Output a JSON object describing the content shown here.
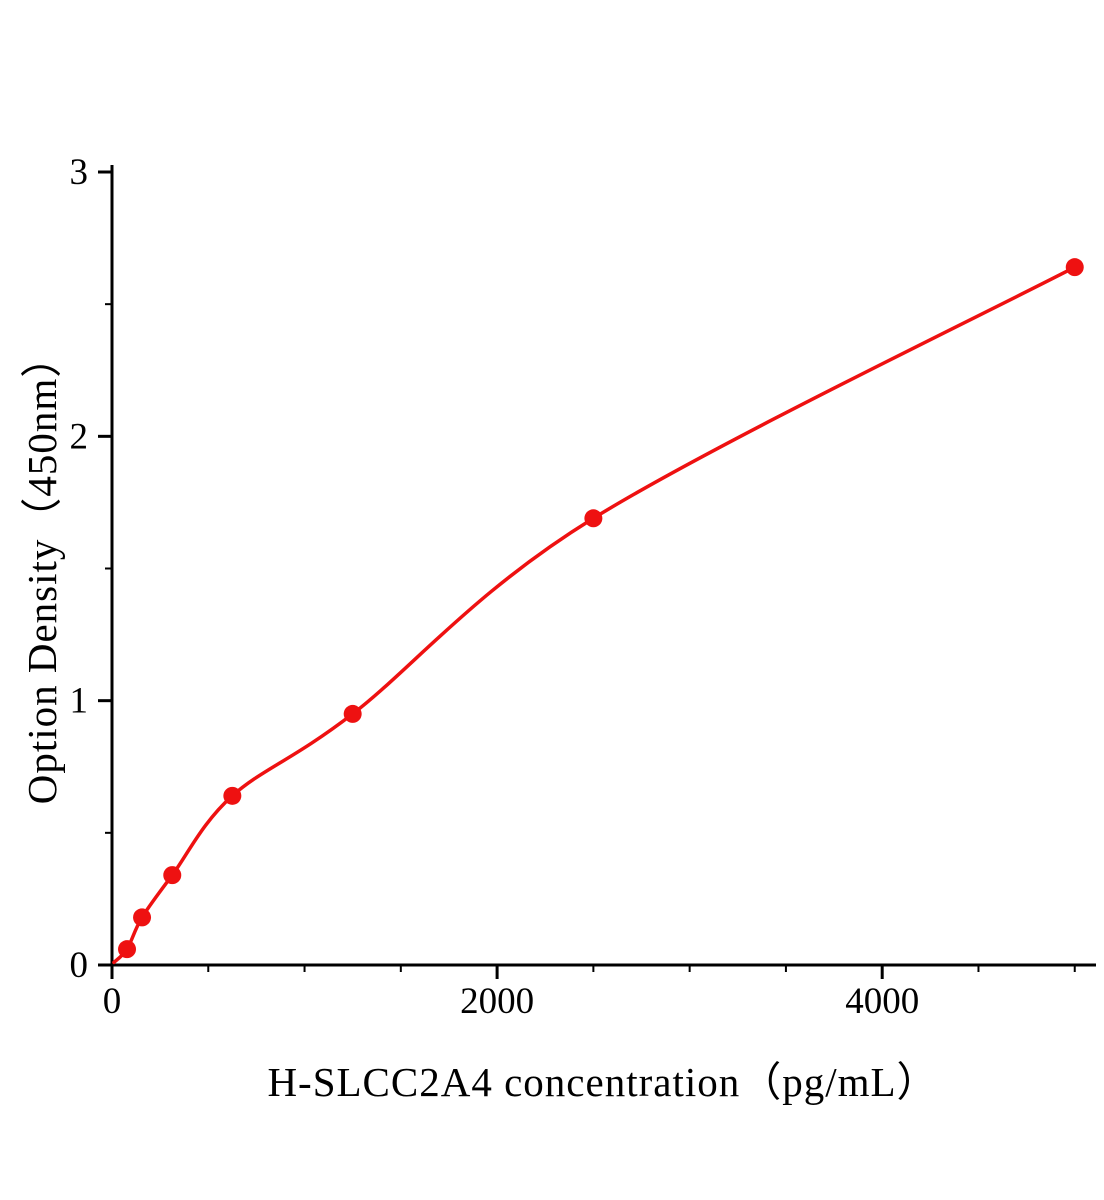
{
  "figure": {
    "background": "#ffffff"
  },
  "chart_data": {
    "type": "line",
    "title": "",
    "xlabel": "H-SLCC2A4 concentration（pg/mL）",
    "ylabel": "Option Density（450nm）",
    "x": [
      78,
      156,
      313,
      625,
      1250,
      2500,
      5000
    ],
    "y": [
      0.06,
      0.18,
      0.34,
      0.64,
      0.95,
      1.69,
      2.64
    ],
    "curve_start": {
      "x": 10,
      "y": 0.01
    },
    "xlim": [
      0,
      5100
    ],
    "ylim": [
      0,
      3
    ],
    "xticks": [
      0,
      2000,
      4000
    ],
    "yticks": [
      0,
      1,
      2,
      3
    ],
    "x_minor_interval": 500,
    "y_minor_interval": 0.5,
    "grid": false,
    "legend": "none",
    "line_color": "#ee1111",
    "marker_color": "#ee1111",
    "axis_color": "#000000",
    "marker": "circle",
    "marker_radius": 9
  }
}
